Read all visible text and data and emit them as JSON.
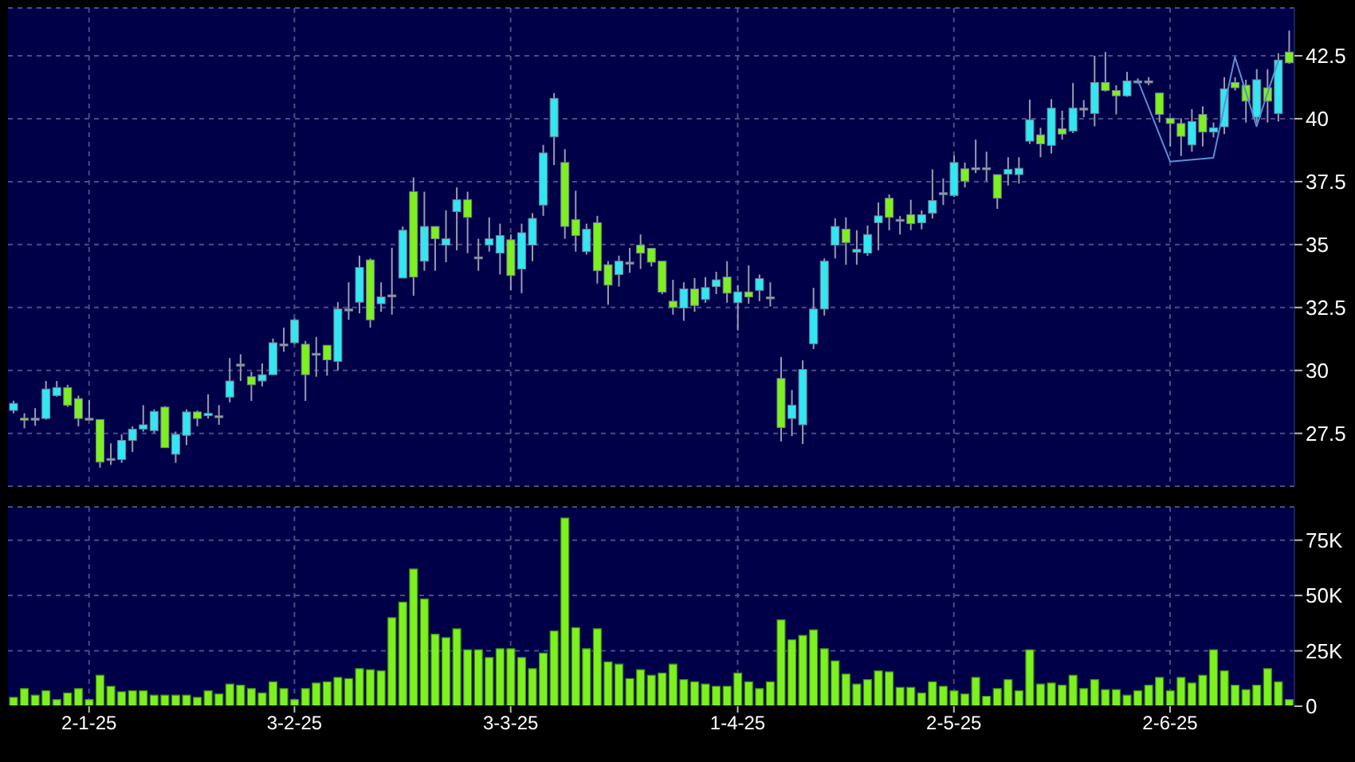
{
  "chart_data": [
    {
      "type": "candlestick",
      "categories": [
        null,
        null,
        null,
        null,
        null,
        null,
        null,
        null,
        null,
        null,
        null,
        null,
        null,
        null,
        null,
        null,
        null,
        null,
        null,
        null,
        null,
        null,
        null,
        null,
        null,
        null,
        null,
        null,
        null,
        null,
        null,
        null,
        null,
        null,
        null,
        null,
        null,
        null,
        null,
        null,
        null,
        null,
        null,
        null,
        null,
        null,
        null,
        null,
        null,
        null,
        null,
        null,
        null,
        null,
        null,
        null,
        null,
        null,
        null,
        null,
        null,
        null,
        null,
        null,
        null,
        null,
        null,
        null,
        null,
        null,
        null,
        null,
        null,
        null,
        null,
        null,
        null,
        null,
        null,
        null,
        null,
        null,
        null,
        null,
        null,
        null,
        null,
        null,
        null,
        null,
        null,
        null,
        null,
        null,
        null,
        null,
        null,
        null,
        null,
        null,
        null,
        null,
        null,
        null,
        null,
        null,
        null,
        null,
        null,
        null,
        null,
        null,
        null,
        null,
        null,
        null,
        null,
        null,
        null
      ],
      "ohlc": [
        [
          28.41,
          28.8,
          28.3,
          28.69
        ],
        [
          28.1,
          28.3,
          27.7,
          28.05
        ],
        [
          28.1,
          28.5,
          27.8,
          28.1
        ],
        [
          28.09,
          29.58,
          28.05,
          29.26
        ],
        [
          29.0,
          29.58,
          28.95,
          29.32
        ],
        [
          29.32,
          29.43,
          28.55,
          28.62
        ],
        [
          28.88,
          29.0,
          27.78,
          28.09
        ],
        [
          28.1,
          28.83,
          28.05,
          28.1
        ],
        [
          28.05,
          28.05,
          26.14,
          26.36
        ],
        [
          26.5,
          27.1,
          26.25,
          26.5
        ],
        [
          26.46,
          27.46,
          26.33,
          27.22
        ],
        [
          27.22,
          27.78,
          26.76,
          27.67
        ],
        [
          27.67,
          28.62,
          27.57,
          27.84
        ],
        [
          27.61,
          28.45,
          27.52,
          28.37
        ],
        [
          28.54,
          28.58,
          26.93,
          26.93
        ],
        [
          26.67,
          27.57,
          26.33,
          27.46
        ],
        [
          27.42,
          28.45,
          27.03,
          28.35
        ],
        [
          28.35,
          28.41,
          27.78,
          28.09
        ],
        [
          28.2,
          29.05,
          28.09,
          28.3
        ],
        [
          28.2,
          28.62,
          27.84,
          28.2
        ],
        [
          28.94,
          30.49,
          28.73,
          29.58
        ],
        [
          30.25,
          30.64,
          29.58,
          30.25
        ],
        [
          29.75,
          29.94,
          28.79,
          29.43
        ],
        [
          29.58,
          30.28,
          29.37,
          29.83
        ],
        [
          29.83,
          31.27,
          29.83,
          31.1
        ],
        [
          31.05,
          31.7,
          30.74,
          31.05
        ],
        [
          31.1,
          32.06,
          31.05,
          32.01
        ],
        [
          31.04,
          31.17,
          28.79,
          29.83
        ],
        [
          30.68,
          31.33,
          29.75,
          30.68
        ],
        [
          31.0,
          31.0,
          29.79,
          30.42
        ],
        [
          30.36,
          32.71,
          30.0,
          32.44
        ],
        [
          32.44,
          33.5,
          32.01,
          32.44
        ],
        [
          32.71,
          34.56,
          32.27,
          34.09
        ],
        [
          34.39,
          34.45,
          31.7,
          32.01
        ],
        [
          32.65,
          33.5,
          32.33,
          32.92
        ],
        [
          33.0,
          34.87,
          32.22,
          33.0
        ],
        [
          33.67,
          35.72,
          33.67,
          35.57
        ],
        [
          37.1,
          37.67,
          32.97,
          33.71
        ],
        [
          34.34,
          37.1,
          33.96,
          35.72
        ],
        [
          35.72,
          35.72,
          33.96,
          35.23
        ],
        [
          34.98,
          36.36,
          34.3,
          35.23
        ],
        [
          36.31,
          37.27,
          34.77,
          36.78
        ],
        [
          36.78,
          37.1,
          34.66,
          36.08
        ],
        [
          34.51,
          35.23,
          33.96,
          34.51
        ],
        [
          34.98,
          36.08,
          34.72,
          35.23
        ],
        [
          34.66,
          35.83,
          33.81,
          35.36
        ],
        [
          35.19,
          35.4,
          33.18,
          33.77
        ],
        [
          34.03,
          35.83,
          33.07,
          35.47
        ],
        [
          34.98,
          36.25,
          34.34,
          36.04
        ],
        [
          36.57,
          38.96,
          36.14,
          38.64
        ],
        [
          39.28,
          41.02,
          38.16,
          40.81
        ],
        [
          38.26,
          38.79,
          35.23,
          35.72
        ],
        [
          35.99,
          37.14,
          34.72,
          35.36
        ],
        [
          34.72,
          35.83,
          34.6,
          35.61
        ],
        [
          35.87,
          36.14,
          33.45,
          33.96
        ],
        [
          34.2,
          34.34,
          32.61,
          33.39
        ],
        [
          33.81,
          34.56,
          33.33,
          34.34
        ],
        [
          34.3,
          34.87,
          33.88,
          34.3
        ],
        [
          34.98,
          35.4,
          34.03,
          34.66
        ],
        [
          34.85,
          34.85,
          34.13,
          34.3
        ],
        [
          34.34,
          34.34,
          33.03,
          33.11
        ],
        [
          32.75,
          33.6,
          32.22,
          32.5
        ],
        [
          32.48,
          33.5,
          31.97,
          33.24
        ],
        [
          33.24,
          33.67,
          32.33,
          32.58
        ],
        [
          32.82,
          33.71,
          32.69,
          33.29
        ],
        [
          33.33,
          33.92,
          33.03,
          33.6
        ],
        [
          33.71,
          34.34,
          32.69,
          33.07
        ],
        [
          32.69,
          33.39,
          31.59,
          33.12
        ],
        [
          33.12,
          34.17,
          32.65,
          32.92
        ],
        [
          33.18,
          33.81,
          32.75,
          33.65
        ],
        [
          32.92,
          33.5,
          32.54,
          32.92
        ],
        [
          29.68,
          30.53,
          27.18,
          27.73
        ],
        [
          28.09,
          29.22,
          27.39,
          28.62
        ],
        [
          27.84,
          30.4,
          27.08,
          30.04
        ],
        [
          31.06,
          33.28,
          30.85,
          32.44
        ],
        [
          32.44,
          34.45,
          32.18,
          34.34
        ],
        [
          34.98,
          36.04,
          34.45,
          35.72
        ],
        [
          35.61,
          36.08,
          34.2,
          35.08
        ],
        [
          34.7,
          35.57,
          34.2,
          34.81
        ],
        [
          34.66,
          35.76,
          34.55,
          35.4
        ],
        [
          35.87,
          36.67,
          34.77,
          36.14
        ],
        [
          36.84,
          36.99,
          35.57,
          36.08
        ],
        [
          36.0,
          36.14,
          35.4,
          36.0
        ],
        [
          36.19,
          36.78,
          35.57,
          35.83
        ],
        [
          35.87,
          36.36,
          35.61,
          36.19
        ],
        [
          36.25,
          37.99,
          36.04,
          36.75
        ],
        [
          37.06,
          37.63,
          36.57,
          37.06
        ],
        [
          36.95,
          38.54,
          36.89,
          38.26
        ],
        [
          38.01,
          38.26,
          37.27,
          37.52
        ],
        [
          38.05,
          39.17,
          37.84,
          38.05
        ],
        [
          38.05,
          38.69,
          37.52,
          38.05
        ],
        [
          37.78,
          37.78,
          36.42,
          36.84
        ],
        [
          37.8,
          38.47,
          37.35,
          37.99
        ],
        [
          37.78,
          38.47,
          37.42,
          38.03
        ],
        [
          39.11,
          40.76,
          39.0,
          39.96
        ],
        [
          39.36,
          39.64,
          38.47,
          39.0
        ],
        [
          38.94,
          40.78,
          38.62,
          40.42
        ],
        [
          39.6,
          40.32,
          39.17,
          39.39
        ],
        [
          39.51,
          41.42,
          39.43,
          40.42
        ],
        [
          40.42,
          40.74,
          40.06,
          40.42
        ],
        [
          40.21,
          42.5,
          39.7,
          41.44
        ],
        [
          41.44,
          42.65,
          41.08,
          41.12
        ],
        [
          41.12,
          41.33,
          40.17,
          40.91
        ],
        [
          40.91,
          41.86,
          40.87,
          41.5
        ],
        [
          41.5,
          41.6,
          41.4,
          41.5
        ],
        [
          41.5,
          41.65,
          41.33,
          41.5
        ],
        [
          41.02,
          41.02,
          39.85,
          40.17
        ],
        [
          40.02,
          40.02,
          38.9,
          39.81
        ],
        [
          39.81,
          40.02,
          38.52,
          39.3
        ],
        [
          38.96,
          40.38,
          38.69,
          39.89
        ],
        [
          40.17,
          40.49,
          38.9,
          39.47
        ],
        [
          39.47,
          39.85,
          39.26,
          39.64
        ],
        [
          39.68,
          41.65,
          39.39,
          41.19
        ],
        [
          41.44,
          41.65,
          41.12,
          41.23
        ],
        [
          41.33,
          41.55,
          39.85,
          40.7
        ],
        [
          40.06,
          41.97,
          39.85,
          41.55
        ],
        [
          41.23,
          41.97,
          39.85,
          40.7
        ],
        [
          40.21,
          42.6,
          39.89,
          42.33
        ],
        [
          42.65,
          43.5,
          42.18,
          42.22
        ]
      ],
      "colors": [
        "#33e6f2",
        "#7ef020",
        "#a0a0b4",
        "#33e6f2",
        "#33e6f2",
        "#7ef020",
        "#7ef020",
        "#a0a0b4",
        "#7ef020",
        "#a0a0b4",
        "#33e6f2",
        "#33e6f2",
        "#33e6f2",
        "#33e6f2",
        "#7ef020",
        "#33e6f2",
        "#33e6f2",
        "#7ef020",
        "#33e6f2",
        "#a0a0b4",
        "#33e6f2",
        "#a0a0b4",
        "#7ef020",
        "#33e6f2",
        "#33e6f2",
        "#a0a0b4",
        "#33e6f2",
        "#7ef020",
        "#a0a0b4",
        "#7ef020",
        "#33e6f2",
        "#a0a0b4",
        "#33e6f2",
        "#7ef020",
        "#33e6f2",
        "#a0a0b4",
        "#33e6f2",
        "#7ef020",
        "#33e6f2",
        "#7ef020",
        "#33e6f2",
        "#33e6f2",
        "#7ef020",
        "#a0a0b4",
        "#33e6f2",
        "#33e6f2",
        "#7ef020",
        "#33e6f2",
        "#33e6f2",
        "#33e6f2",
        "#33e6f2",
        "#7ef020",
        "#7ef020",
        "#33e6f2",
        "#7ef020",
        "#7ef020",
        "#33e6f2",
        "#a0a0b4",
        "#7ef020",
        "#7ef020",
        "#7ef020",
        "#7ef020",
        "#33e6f2",
        "#7ef020",
        "#33e6f2",
        "#33e6f2",
        "#7ef020",
        "#33e6f2",
        "#7ef020",
        "#33e6f2",
        "#a0a0b4",
        "#7ef020",
        "#33e6f2",
        "#33e6f2",
        "#33e6f2",
        "#33e6f2",
        "#33e6f2",
        "#7ef020",
        "#33e6f2",
        "#33e6f2",
        "#33e6f2",
        "#7ef020",
        "#a0a0b4",
        "#7ef020",
        "#33e6f2",
        "#33e6f2",
        "#a0a0b4",
        "#33e6f2",
        "#7ef020",
        "#a0a0b4",
        "#a0a0b4",
        "#7ef020",
        "#33e6f2",
        "#33e6f2",
        "#33e6f2",
        "#7ef020",
        "#33e6f2",
        "#7ef020",
        "#33e6f2",
        "#a0a0b4",
        "#33e6f2",
        "#7ef020",
        "#7ef020",
        "#33e6f2",
        "#a0a0b4",
        "#a0a0b4",
        "#7ef020",
        "#7ef020",
        "#7ef020",
        "#33e6f2",
        "#7ef020",
        "#33e6f2",
        "#33e6f2",
        "#7ef020",
        "#7ef020",
        "#33e6f2",
        "#7ef020",
        "#33e6f2",
        "#7ef020"
      ],
      "series": [
        {
          "type": "line",
          "color": "#5b8fd6",
          "values": [
            null,
            null,
            null,
            null,
            null,
            null,
            null,
            null,
            null,
            null,
            null,
            null,
            null,
            null,
            null,
            null,
            null,
            null,
            null,
            null,
            null,
            null,
            null,
            null,
            null,
            null,
            null,
            null,
            null,
            null,
            null,
            null,
            null,
            null,
            null,
            null,
            null,
            null,
            null,
            null,
            null,
            null,
            null,
            null,
            null,
            null,
            null,
            null,
            null,
            null,
            null,
            null,
            null,
            null,
            null,
            null,
            null,
            null,
            null,
            null,
            null,
            null,
            null,
            null,
            null,
            null,
            null,
            null,
            null,
            null,
            null,
            null,
            null,
            null,
            null,
            null,
            null,
            null,
            null,
            null,
            null,
            null,
            null,
            null,
            null,
            null,
            null,
            null,
            null,
            null,
            null,
            null,
            null,
            null,
            null,
            null,
            null,
            null,
            null,
            null,
            null,
            null,
            null,
            null,
            41.55,
            null,
            null,
            38.3,
            null,
            null,
            null,
            38.45,
            null,
            42.45,
            null,
            39.7,
            null,
            42.3,
            null
          ]
        }
      ],
      "ylim": [
        25.4,
        44.4
      ],
      "yticks": [
        27.5,
        30,
        32.5,
        35,
        37.5,
        40,
        42.5
      ],
      "grid": true,
      "tick_labels": "y"
    },
    {
      "type": "bar",
      "categories": [
        null,
        null,
        null,
        null,
        null,
        null,
        null,
        "2-1-25",
        null,
        null,
        null,
        null,
        null,
        null,
        null,
        null,
        null,
        null,
        null,
        null,
        null,
        null,
        null,
        null,
        null,
        null,
        "3-2-25",
        null,
        null,
        null,
        null,
        null,
        null,
        null,
        null,
        null,
        null,
        null,
        null,
        null,
        null,
        null,
        null,
        null,
        null,
        null,
        "3-3-25",
        null,
        null,
        null,
        null,
        null,
        null,
        null,
        null,
        null,
        null,
        null,
        null,
        null,
        null,
        null,
        null,
        null,
        null,
        null,
        null,
        "1-4-25",
        null,
        null,
        null,
        null,
        null,
        null,
        null,
        null,
        null,
        null,
        null,
        null,
        null,
        null,
        null,
        null,
        null,
        null,
        null,
        "2-5-25",
        null,
        null,
        null,
        null,
        null,
        null,
        null,
        null,
        null,
        null,
        null,
        null,
        null,
        null,
        null,
        null,
        null,
        null,
        null,
        "2-6-25",
        null,
        null,
        null,
        null,
        null,
        null,
        null,
        null,
        null,
        null,
        null
      ],
      "values": [
        4000,
        8000,
        5000,
        7000,
        3000,
        6000,
        8000,
        3000,
        14000,
        9000,
        6500,
        7000,
        7000,
        5000,
        5000,
        5000,
        5000,
        4000,
        7000,
        5500,
        10000,
        9500,
        8000,
        6000,
        11000,
        8000,
        3000,
        8000,
        10500,
        11000,
        13000,
        12500,
        17000,
        16500,
        16000,
        40000,
        47000,
        62000,
        48500,
        32500,
        31000,
        35000,
        25500,
        25500,
        22000,
        26000,
        26000,
        22000,
        17000,
        24000,
        34000,
        85000,
        35500,
        26000,
        35000,
        20000,
        19000,
        12500,
        16500,
        14000,
        15000,
        19000,
        12000,
        11000,
        10000,
        9000,
        9000,
        15000,
        11000,
        8000,
        11000,
        39000,
        30000,
        32000,
        34500,
        26000,
        20500,
        14500,
        10000,
        12000,
        16000,
        15500,
        8500,
        8500,
        6000,
        11000,
        9000,
        7000,
        5500,
        13000,
        4500,
        8000,
        12000,
        7000,
        25500,
        10000,
        10500,
        9500,
        14000,
        8000,
        12000,
        7500,
        7500,
        5000,
        7000,
        9500,
        13000,
        7000,
        13000,
        10500,
        14000,
        25500,
        16000,
        9500,
        7500,
        9500,
        17000,
        11000,
        3000
      ],
      "color": "#7ef020",
      "ylim": [
        0,
        90000
      ],
      "yticks": [
        0,
        {
          "value": 25000,
          "label": "25K"
        },
        {
          "value": 50000,
          "label": "50K"
        },
        {
          "value": 75000,
          "label": "75K"
        }
      ],
      "grid": true
    }
  ]
}
